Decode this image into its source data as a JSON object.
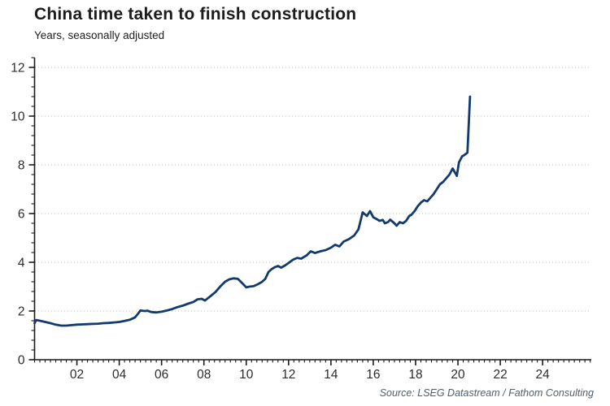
{
  "header": {
    "title": "China time taken to finish construction",
    "subtitle": "Years, seasonally adjusted"
  },
  "footer": {
    "source": "Source: LSEG Datastream / Fathom Consulting"
  },
  "colors": {
    "background": "#ffffff",
    "line": "#123a6e",
    "grid": "#c2c2c2",
    "axis": "#1a1a1a",
    "tick_label": "#2b2b2b",
    "title": "#1c1c1c",
    "source": "#4f5f6d"
  },
  "chart_data": {
    "type": "line",
    "title": "China time taken to finish construction",
    "subtitle": "Years, seasonally adjusted",
    "source": "Source: LSEG Datastream / Fathom Consulting",
    "xlabel": "",
    "ylabel": "Years",
    "xlim": [
      2000,
      2026.3
    ],
    "ylim": [
      0,
      12.4
    ],
    "y_major_ticks": [
      0,
      2,
      4,
      6,
      8,
      10,
      12
    ],
    "y_minor_step": 0.4,
    "x_major_tick_years": [
      2002,
      2004,
      2006,
      2008,
      2010,
      2012,
      2014,
      2016,
      2018,
      2020,
      2022,
      2024
    ],
    "x_tick_labels": [
      "02",
      "04",
      "06",
      "08",
      "10",
      "12",
      "14",
      "16",
      "18",
      "20",
      "22",
      "24"
    ],
    "x_minor_step": 0.25,
    "grid": "horizontal-dotted-at-major-y",
    "legend": "none",
    "series": [
      {
        "color": "#123a6e",
        "points": [
          [
            2000.0,
            1.5
          ],
          [
            2000.08,
            1.63
          ],
          [
            2000.25,
            1.6
          ],
          [
            2000.5,
            1.55
          ],
          [
            2000.75,
            1.5
          ],
          [
            2001.0,
            1.44
          ],
          [
            2001.25,
            1.4
          ],
          [
            2001.5,
            1.4
          ],
          [
            2001.75,
            1.42
          ],
          [
            2002.0,
            1.44
          ],
          [
            2002.25,
            1.45
          ],
          [
            2002.5,
            1.46
          ],
          [
            2002.75,
            1.47
          ],
          [
            2003.0,
            1.48
          ],
          [
            2003.25,
            1.5
          ],
          [
            2003.5,
            1.51
          ],
          [
            2003.75,
            1.53
          ],
          [
            2004.0,
            1.55
          ],
          [
            2004.25,
            1.59
          ],
          [
            2004.5,
            1.64
          ],
          [
            2004.75,
            1.74
          ],
          [
            2004.9,
            1.9
          ],
          [
            2005.0,
            2.02
          ],
          [
            2005.2,
            2.0
          ],
          [
            2005.35,
            2.01
          ],
          [
            2005.5,
            1.96
          ],
          [
            2005.75,
            1.94
          ],
          [
            2006.0,
            1.97
          ],
          [
            2006.25,
            2.02
          ],
          [
            2006.5,
            2.08
          ],
          [
            2006.75,
            2.16
          ],
          [
            2007.0,
            2.22
          ],
          [
            2007.25,
            2.3
          ],
          [
            2007.5,
            2.37
          ],
          [
            2007.7,
            2.48
          ],
          [
            2007.9,
            2.5
          ],
          [
            2008.05,
            2.43
          ],
          [
            2008.3,
            2.6
          ],
          [
            2008.55,
            2.78
          ],
          [
            2008.8,
            3.03
          ],
          [
            2009.0,
            3.2
          ],
          [
            2009.2,
            3.3
          ],
          [
            2009.4,
            3.34
          ],
          [
            2009.6,
            3.32
          ],
          [
            2009.8,
            3.15
          ],
          [
            2010.0,
            2.97
          ],
          [
            2010.15,
            3.0
          ],
          [
            2010.35,
            3.02
          ],
          [
            2010.55,
            3.1
          ],
          [
            2010.75,
            3.2
          ],
          [
            2010.9,
            3.32
          ],
          [
            2011.05,
            3.6
          ],
          [
            2011.2,
            3.72
          ],
          [
            2011.35,
            3.8
          ],
          [
            2011.5,
            3.85
          ],
          [
            2011.65,
            3.78
          ],
          [
            2011.85,
            3.88
          ],
          [
            2012.0,
            3.97
          ],
          [
            2012.2,
            4.1
          ],
          [
            2012.4,
            4.18
          ],
          [
            2012.6,
            4.15
          ],
          [
            2012.85,
            4.28
          ],
          [
            2013.05,
            4.45
          ],
          [
            2013.25,
            4.38
          ],
          [
            2013.5,
            4.45
          ],
          [
            2013.75,
            4.5
          ],
          [
            2014.0,
            4.6
          ],
          [
            2014.2,
            4.72
          ],
          [
            2014.4,
            4.65
          ],
          [
            2014.6,
            4.85
          ],
          [
            2014.85,
            4.95
          ],
          [
            2015.1,
            5.1
          ],
          [
            2015.3,
            5.35
          ],
          [
            2015.5,
            6.05
          ],
          [
            2015.7,
            5.9
          ],
          [
            2015.85,
            6.1
          ],
          [
            2016.0,
            5.85
          ],
          [
            2016.15,
            5.78
          ],
          [
            2016.3,
            5.7
          ],
          [
            2016.45,
            5.74
          ],
          [
            2016.55,
            5.6
          ],
          [
            2016.7,
            5.65
          ],
          [
            2016.8,
            5.75
          ],
          [
            2017.0,
            5.6
          ],
          [
            2017.1,
            5.5
          ],
          [
            2017.25,
            5.65
          ],
          [
            2017.4,
            5.6
          ],
          [
            2017.55,
            5.7
          ],
          [
            2017.7,
            5.9
          ],
          [
            2017.8,
            5.95
          ],
          [
            2017.95,
            6.1
          ],
          [
            2018.1,
            6.3
          ],
          [
            2018.25,
            6.45
          ],
          [
            2018.4,
            6.55
          ],
          [
            2018.55,
            6.5
          ],
          [
            2018.7,
            6.65
          ],
          [
            2018.85,
            6.8
          ],
          [
            2019.0,
            7.0
          ],
          [
            2019.15,
            7.2
          ],
          [
            2019.3,
            7.3
          ],
          [
            2019.45,
            7.45
          ],
          [
            2019.6,
            7.6
          ],
          [
            2019.75,
            7.85
          ],
          [
            2019.95,
            7.55
          ],
          [
            2020.05,
            8.1
          ],
          [
            2020.2,
            8.35
          ],
          [
            2020.3,
            8.4
          ],
          [
            2020.45,
            8.5
          ],
          [
            2020.57,
            10.8
          ]
        ]
      }
    ]
  }
}
